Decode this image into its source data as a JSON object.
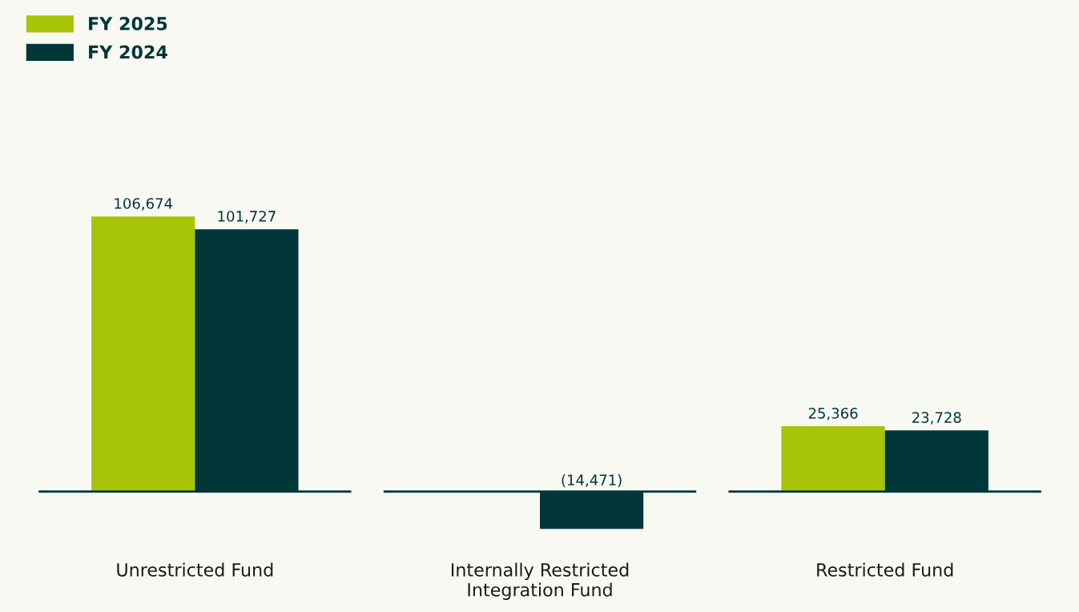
{
  "chart_data": {
    "type": "bar",
    "categories": [
      "Unrestricted Fund",
      "Internally Restricted\nIntegration Fund",
      "Restricted Fund"
    ],
    "series": [
      {
        "name": "FY 2025",
        "color": "#a8c408",
        "values": [
          106674,
          null,
          25366
        ],
        "value_labels": [
          "106,674",
          null,
          "25,366"
        ]
      },
      {
        "name": "FY 2024",
        "color": "#02373a",
        "values": [
          101727,
          -14471,
          23728
        ],
        "value_labels": [
          "101,727",
          "(14,471)",
          "23,728"
        ]
      }
    ],
    "ref_lines": [
      {
        "axis": "y",
        "value": 0,
        "color": "#02373a"
      }
    ],
    "legend": "top left"
  }
}
